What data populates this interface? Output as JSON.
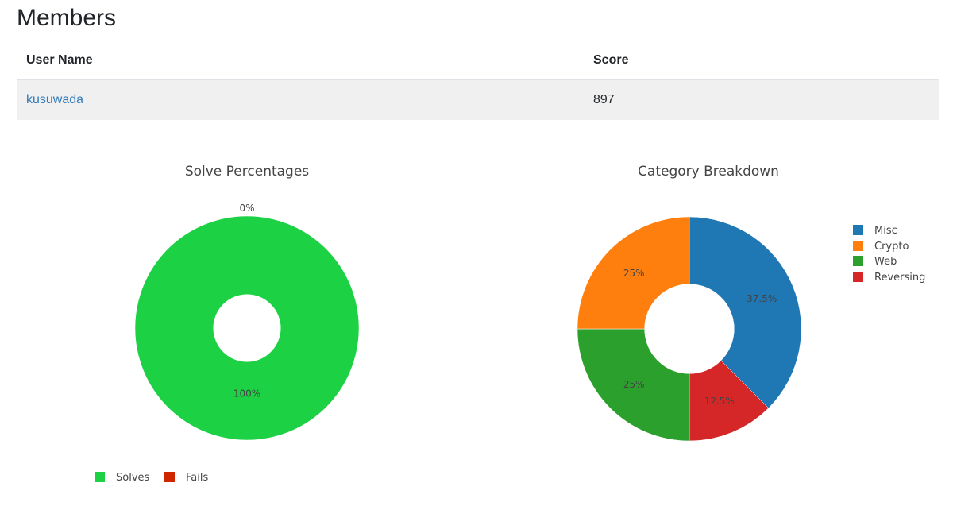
{
  "page": {
    "title": "Members"
  },
  "table": {
    "headers": {
      "name": "User Name",
      "score": "Score"
    },
    "rows": [
      {
        "name": "kusuwada",
        "score": "897"
      }
    ]
  },
  "colors": {
    "solves": "#1cd143",
    "fails": "#cf2600",
    "misc": "#1f77b4",
    "crypto": "#ff7f0e",
    "web": "#2ca02c",
    "reversing": "#d62728",
    "link": "#337ab7",
    "row_background": "#f0f0f0"
  },
  "chart_data": [
    {
      "type": "pie",
      "title": "Solve Percentages",
      "hole": 0.3,
      "slices": [
        {
          "name": "Solves",
          "value": 100,
          "label": "100%",
          "color": "#1cd143"
        },
        {
          "name": "Fails",
          "value": 0,
          "label": "0%",
          "color": "#cf2600"
        }
      ],
      "legend_position": "bottom-left"
    },
    {
      "type": "pie",
      "title": "Category Breakdown",
      "hole": 0.4,
      "slices": [
        {
          "name": "Misc",
          "value": 37.5,
          "label": "37.5%",
          "color": "#1f77b4"
        },
        {
          "name": "Reversing",
          "value": 12.5,
          "label": "12.5%",
          "color": "#d62728"
        },
        {
          "name": "Web",
          "value": 25,
          "label": "25%",
          "color": "#2ca02c"
        },
        {
          "name": "Crypto",
          "value": 25,
          "label": "25%",
          "color": "#ff7f0e"
        }
      ],
      "legend": [
        "Misc",
        "Crypto",
        "Web",
        "Reversing"
      ],
      "legend_position": "top-right"
    }
  ]
}
